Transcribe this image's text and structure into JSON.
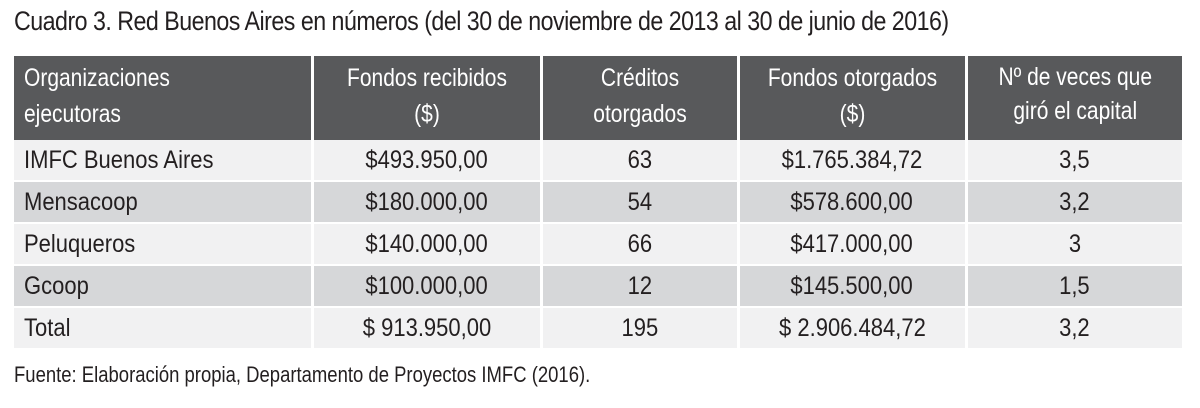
{
  "caption": "Cuadro 3. Red Buenos Aires en números (del 30 de noviembre de 2013 al 30 de junio de 2016)",
  "table": {
    "headers": {
      "org": "Organizaciones ejecutoras",
      "fondos_recibidos": "Fondos recibidos ($)",
      "creditos": "Créditos otorgados",
      "fondos_otorgados": "Fondos otorgados ($)",
      "veces_capital": "Nº de veces que giró el capital"
    },
    "rows": [
      {
        "org": "IMFC Buenos Aires",
        "fondos_recibidos": "$493.950,00",
        "creditos": "63",
        "fondos_otorgados": "$1.765.384,72",
        "veces_capital": "3,5"
      },
      {
        "org": "Mensacoop",
        "fondos_recibidos": "$180.000,00",
        "creditos": "54",
        "fondos_otorgados": "$578.600,00",
        "veces_capital": "3,2"
      },
      {
        "org": "Peluqueros",
        "fondos_recibidos": "$140.000,00",
        "creditos": "66",
        "fondos_otorgados": "$417.000,00",
        "veces_capital": "3"
      },
      {
        "org": "Gcoop",
        "fondos_recibidos": "$100.000,00",
        "creditos": "12",
        "fondos_otorgados": "$145.500,00",
        "veces_capital": "1,5"
      },
      {
        "org": "Total",
        "fondos_recibidos": "$ 913.950,00",
        "creditos": "195",
        "fondos_otorgados": "$ 2.906.484,72",
        "veces_capital": "3,2"
      }
    ]
  },
  "source": "Fuente: Elaboración propia, Departamento de Proyectos IMFC (2016).",
  "colors": {
    "header_bg": "#58595b",
    "row_light": "#f1f1f2",
    "row_dark": "#d6d7d9"
  }
}
